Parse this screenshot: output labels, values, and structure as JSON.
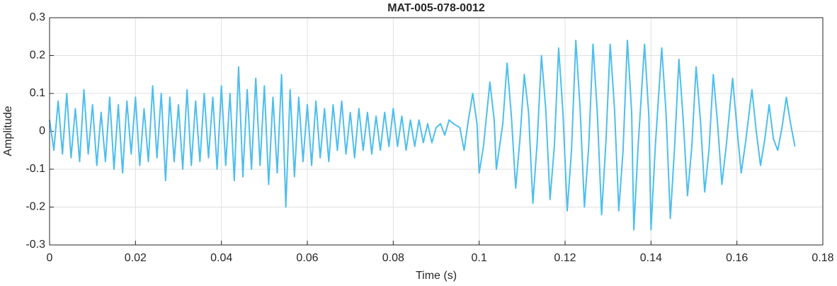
{
  "chart_data": {
    "type": "line",
    "title": "MAT-005-078-0012",
    "x_label": "Time (s)",
    "y_label": "Amplitude",
    "color": "#4dbeee",
    "grid": true,
    "xlim": [
      0,
      0.18
    ],
    "ylim": [
      -0.3,
      0.3
    ],
    "xticks": [
      0,
      0.02,
      0.04,
      0.06,
      0.08,
      0.1,
      0.12,
      0.14,
      0.16,
      0.18
    ],
    "yticks": [
      -0.3,
      -0.2,
      -0.1,
      0,
      0.1,
      0.2,
      0.3
    ],
    "x": [
      0,
      0.001,
      0.002,
      0.003,
      0.004,
      0.005,
      0.006,
      0.007,
      0.008,
      0.009,
      0.01,
      0.011,
      0.012,
      0.013,
      0.014,
      0.015,
      0.016,
      0.017,
      0.018,
      0.019,
      0.02,
      0.021,
      0.022,
      0.023,
      0.024,
      0.025,
      0.026,
      0.027,
      0.028,
      0.029,
      0.03,
      0.031,
      0.032,
      0.033,
      0.034,
      0.035,
      0.036,
      0.037,
      0.038,
      0.039,
      0.04,
      0.041,
      0.042,
      0.043,
      0.044,
      0.045,
      0.046,
      0.047,
      0.048,
      0.049,
      0.05,
      0.051,
      0.052,
      0.053,
      0.054,
      0.055,
      0.056,
      0.057,
      0.058,
      0.059,
      0.06,
      0.061,
      0.062,
      0.063,
      0.064,
      0.065,
      0.066,
      0.067,
      0.068,
      0.069,
      0.07,
      0.071,
      0.072,
      0.073,
      0.074,
      0.075,
      0.076,
      0.077,
      0.078,
      0.079,
      0.08,
      0.081,
      0.082,
      0.083,
      0.084,
      0.085,
      0.086,
      0.087,
      0.088,
      0.089,
      0.09,
      0.091,
      0.092,
      0.093,
      0.094,
      0.0955,
      0.0965,
      0.0975,
      0.0985,
      0.0995,
      0.1,
      0.101,
      0.1025,
      0.1035,
      0.104,
      0.1055,
      0.1065,
      0.1075,
      0.1085,
      0.1095,
      0.1105,
      0.1115,
      0.1125,
      0.1135,
      0.1145,
      0.1155,
      0.1165,
      0.1175,
      0.1185,
      0.1195,
      0.1205,
      0.1215,
      0.1225,
      0.1235,
      0.1245,
      0.1255,
      0.1265,
      0.1275,
      0.1285,
      0.1295,
      0.1305,
      0.1315,
      0.1325,
      0.1335,
      0.1345,
      0.1355,
      0.136,
      0.137,
      0.1385,
      0.1395,
      0.14,
      0.141,
      0.1425,
      0.1435,
      0.1445,
      0.1455,
      0.1465,
      0.1475,
      0.1485,
      0.1495,
      0.1505,
      0.1515,
      0.1525,
      0.1535,
      0.1545,
      0.1555,
      0.1565,
      0.1575,
      0.159,
      0.16,
      0.161,
      0.162,
      0.1635,
      0.1645,
      0.1655,
      0.1665,
      0.1675,
      0.1685,
      0.1695,
      0.1705,
      0.1715,
      0.1725,
      0.1735
    ],
    "values": [
      0.03,
      -0.05,
      0.08,
      -0.06,
      0.1,
      -0.07,
      0.06,
      -0.08,
      0.11,
      -0.06,
      0.07,
      -0.09,
      0.05,
      -0.08,
      0.09,
      -0.1,
      0.07,
      -0.11,
      0.08,
      -0.06,
      0.09,
      -0.09,
      0.06,
      -0.08,
      0.12,
      -0.07,
      0.1,
      -0.13,
      0.09,
      -0.08,
      0.07,
      -0.1,
      0.11,
      -0.09,
      0.08,
      -0.08,
      0.1,
      -0.07,
      0.09,
      -0.1,
      0.12,
      -0.09,
      0.1,
      -0.13,
      0.17,
      -0.12,
      0.11,
      -0.1,
      0.14,
      -0.09,
      0.12,
      -0.14,
      0.09,
      -0.11,
      0.15,
      -0.2,
      0.11,
      -0.12,
      0.09,
      -0.08,
      0.07,
      -0.09,
      0.08,
      -0.07,
      0.06,
      -0.08,
      0.07,
      -0.05,
      0.08,
      -0.06,
      0.05,
      -0.07,
      0.06,
      -0.05,
      0.05,
      -0.06,
      0.04,
      -0.05,
      0.05,
      -0.04,
      0.06,
      -0.04,
      0.04,
      -0.05,
      0.03,
      -0.04,
      0.03,
      -0.03,
      0.02,
      -0.03,
      0.01,
      0.02,
      -0.01,
      0.03,
      0.02,
      0.01,
      -0.05,
      0.03,
      0.1,
      0.02,
      -0.11,
      -0.04,
      0.13,
      0.03,
      -0.1,
      0.02,
      0.18,
      0.04,
      -0.15,
      -0.02,
      0.15,
      0.05,
      -0.19,
      -0.03,
      0.2,
      0.06,
      -0.18,
      -0.04,
      0.22,
      0.05,
      -0.21,
      -0.05,
      0.24,
      0.06,
      -0.2,
      -0.04,
      0.23,
      0.05,
      -0.22,
      -0.03,
      0.23,
      0.06,
      -0.21,
      -0.05,
      0.24,
      0.05,
      -0.26,
      -0.04,
      0.23,
      0.04,
      -0.26,
      -0.04,
      0.22,
      0.05,
      -0.23,
      -0.04,
      0.19,
      0.03,
      -0.17,
      -0.04,
      0.17,
      0.03,
      -0.16,
      -0.05,
      0.15,
      0.02,
      -0.14,
      -0.04,
      0.14,
      0.01,
      -0.11,
      -0.03,
      0.11,
      0,
      -0.09,
      -0.02,
      0.07,
      -0.02,
      -0.05,
      0.01,
      0.09,
      0.02,
      -0.04
    ]
  }
}
